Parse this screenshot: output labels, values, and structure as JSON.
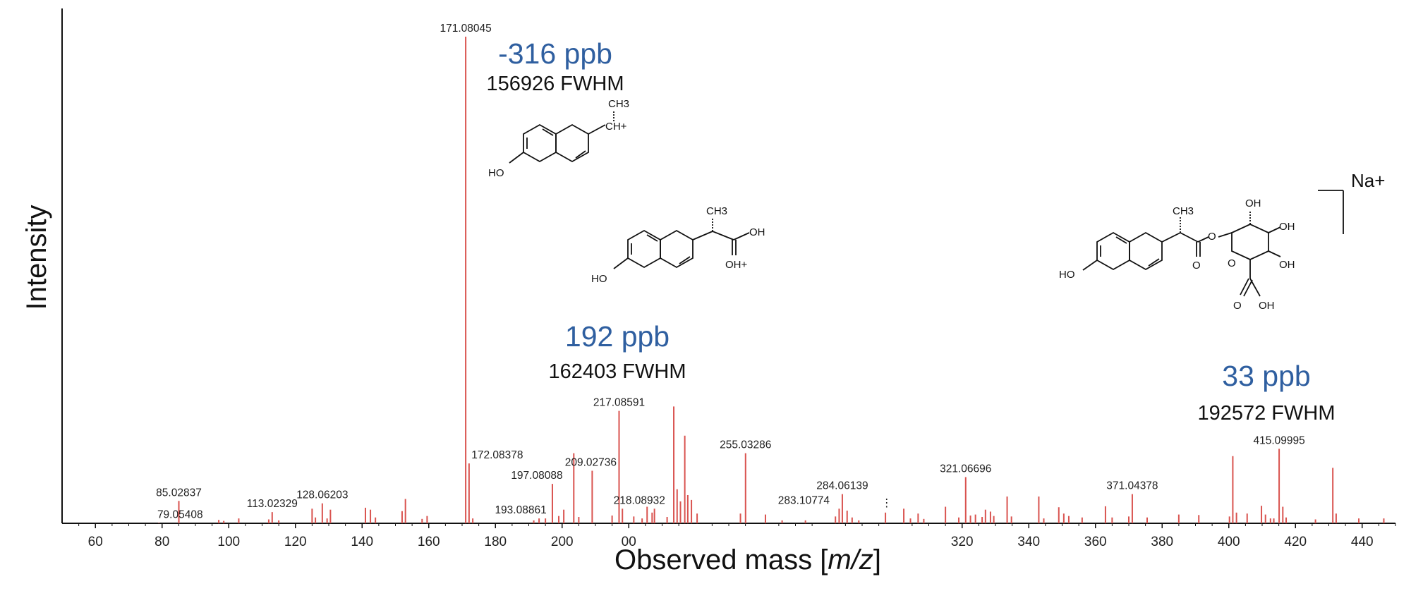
{
  "chart_data": {
    "type": "bar",
    "xlabel": "Observed mass [m/z]",
    "ylabel": "Intensity",
    "xlim": [
      50,
      450
    ],
    "x_ticks": [
      "60",
      "80",
      "100",
      "120",
      "140",
      "160",
      "180",
      "200",
      "00",
      "320",
      "340",
      "360",
      "380",
      "400",
      "420",
      "440"
    ],
    "labeled_peaks": [
      {
        "mz": 79.05408,
        "intensity": 0.1,
        "label": "79.05408"
      },
      {
        "mz": 85.02837,
        "intensity": 4.6,
        "label": "85.02837"
      },
      {
        "mz": 113.02329,
        "intensity": 2.3,
        "label": "113.02329"
      },
      {
        "mz": 128.06203,
        "intensity": 4.1,
        "label": "128.06203"
      },
      {
        "mz": 171.08045,
        "intensity": 100,
        "label": "171.08045"
      },
      {
        "mz": 172.08378,
        "intensity": 12.3,
        "label": "172.08378"
      },
      {
        "mz": 193.08861,
        "intensity": 1.0,
        "label": "193.08861"
      },
      {
        "mz": 197.08088,
        "intensity": 8.1,
        "label": "197.08088"
      },
      {
        "mz": 209.02736,
        "intensity": 10.8,
        "label": "209.02736"
      },
      {
        "mz": 217.08591,
        "intensity": 23.1,
        "label": "217.08591"
      },
      {
        "mz": 218.08932,
        "intensity": 3.0,
        "label": "218.08932"
      },
      {
        "mz": 255.03286,
        "intensity": 14.4,
        "label": "255.03286"
      },
      {
        "mz": 283.10774,
        "intensity": 3.0,
        "label": "283.10774"
      },
      {
        "mz": 284.06139,
        "intensity": 6.0,
        "label": "284.06139"
      },
      {
        "mz": 321.06696,
        "intensity": 9.5,
        "label": "321.06696"
      },
      {
        "mz": 371.04378,
        "intensity": 6.0,
        "label": "371.04378"
      },
      {
        "mz": 415.09995,
        "intensity": 15.3,
        "label": "415.09995"
      }
    ],
    "other_peaks": [
      {
        "mz": 97,
        "intensity": 0.7
      },
      {
        "mz": 98.5,
        "intensity": 0.5
      },
      {
        "mz": 103,
        "intensity": 1.0
      },
      {
        "mz": 112,
        "intensity": 0.8
      },
      {
        "mz": 115,
        "intensity": 0.6
      },
      {
        "mz": 125,
        "intensity": 3.0
      },
      {
        "mz": 126,
        "intensity": 1.2
      },
      {
        "mz": 129.5,
        "intensity": 1.0
      },
      {
        "mz": 130.5,
        "intensity": 2.8
      },
      {
        "mz": 141,
        "intensity": 3.2
      },
      {
        "mz": 142.5,
        "intensity": 2.8
      },
      {
        "mz": 144,
        "intensity": 1.2
      },
      {
        "mz": 152,
        "intensity": 2.5
      },
      {
        "mz": 153,
        "intensity": 5.0
      },
      {
        "mz": 158,
        "intensity": 0.9
      },
      {
        "mz": 159.5,
        "intensity": 1.5
      },
      {
        "mz": 173.2,
        "intensity": 1.0
      },
      {
        "mz": 191.5,
        "intensity": 0.6
      },
      {
        "mz": 195,
        "intensity": 1.0
      },
      {
        "mz": 199,
        "intensity": 1.5
      },
      {
        "mz": 200.5,
        "intensity": 2.8
      },
      {
        "mz": 203.5,
        "intensity": 14.4
      },
      {
        "mz": 205,
        "intensity": 1.3
      },
      {
        "mz": 215,
        "intensity": 1.6
      },
      {
        "mz": 221.5,
        "intensity": 1.4
      },
      {
        "mz": 224,
        "intensity": 1.0
      },
      {
        "mz": 225.5,
        "intensity": 3.4
      },
      {
        "mz": 227,
        "intensity": 2.2
      },
      {
        "mz": 227.7,
        "intensity": 3.0
      },
      {
        "mz": 231.5,
        "intensity": 1.3
      },
      {
        "mz": 233.5,
        "intensity": 24.0
      },
      {
        "mz": 234.5,
        "intensity": 7.0
      },
      {
        "mz": 235.5,
        "intensity": 4.5
      },
      {
        "mz": 236.8,
        "intensity": 18.0
      },
      {
        "mz": 237.7,
        "intensity": 5.8
      },
      {
        "mz": 238.8,
        "intensity": 4.8
      },
      {
        "mz": 240.5,
        "intensity": 2.0
      },
      {
        "mz": 253.5,
        "intensity": 2.0
      },
      {
        "mz": 261,
        "intensity": 1.8
      },
      {
        "mz": 266,
        "intensity": 0.6
      },
      {
        "mz": 273,
        "intensity": 0.6
      },
      {
        "mz": 282,
        "intensity": 1.4
      },
      {
        "mz": 285.5,
        "intensity": 2.6
      },
      {
        "mz": 287,
        "intensity": 1.2
      },
      {
        "mz": 289,
        "intensity": 0.6
      },
      {
        "mz": 297,
        "intensity": 2.2
      },
      {
        "mz": 302.5,
        "intensity": 3.0
      },
      {
        "mz": 304.5,
        "intensity": 1.0
      },
      {
        "mz": 306.8,
        "intensity": 2.0
      },
      {
        "mz": 308.5,
        "intensity": 0.9
      },
      {
        "mz": 315,
        "intensity": 3.4
      },
      {
        "mz": 319,
        "intensity": 1.2
      },
      {
        "mz": 322.5,
        "intensity": 1.6
      },
      {
        "mz": 324,
        "intensity": 1.8
      },
      {
        "mz": 326,
        "intensity": 1.3
      },
      {
        "mz": 327,
        "intensity": 2.8
      },
      {
        "mz": 328.5,
        "intensity": 2.4
      },
      {
        "mz": 329.5,
        "intensity": 1.5
      },
      {
        "mz": 333.5,
        "intensity": 5.5
      },
      {
        "mz": 334.8,
        "intensity": 1.4
      },
      {
        "mz": 343,
        "intensity": 5.5
      },
      {
        "mz": 344.5,
        "intensity": 1.0
      },
      {
        "mz": 349,
        "intensity": 3.3
      },
      {
        "mz": 350.5,
        "intensity": 2.0
      },
      {
        "mz": 352,
        "intensity": 1.5
      },
      {
        "mz": 356,
        "intensity": 1.2
      },
      {
        "mz": 363,
        "intensity": 3.5
      },
      {
        "mz": 365,
        "intensity": 1.2
      },
      {
        "mz": 370,
        "intensity": 1.4
      },
      {
        "mz": 375.5,
        "intensity": 1.2
      },
      {
        "mz": 385,
        "intensity": 1.8
      },
      {
        "mz": 391,
        "intensity": 1.7
      },
      {
        "mz": 400.2,
        "intensity": 1.4
      },
      {
        "mz": 401.2,
        "intensity": 13.8
      },
      {
        "mz": 402.3,
        "intensity": 2.2
      },
      {
        "mz": 405.5,
        "intensity": 2.0
      },
      {
        "mz": 409.8,
        "intensity": 3.6
      },
      {
        "mz": 411,
        "intensity": 1.8
      },
      {
        "mz": 412.5,
        "intensity": 1.0
      },
      {
        "mz": 413.5,
        "intensity": 1.0
      },
      {
        "mz": 416.2,
        "intensity": 3.4
      },
      {
        "mz": 417.2,
        "intensity": 1.2
      },
      {
        "mz": 426,
        "intensity": 0.8
      },
      {
        "mz": 431.2,
        "intensity": 11.4
      },
      {
        "mz": 432.2,
        "intensity": 2.0
      },
      {
        "mz": 439,
        "intensity": 1.0
      },
      {
        "mz": 446.5,
        "intensity": 1.0
      }
    ],
    "annotations": [
      {
        "ppb": "-316 ppb",
        "fwhm": "156926 FWHM"
      },
      {
        "ppb": "192 ppb",
        "fwhm": "162403 FWHM"
      },
      {
        "ppb": "33 ppb",
        "fwhm": "192572 FWHM"
      }
    ],
    "structure_labels": {
      "ch3": "CH3",
      "ch_plus": "CH+",
      "ho": "HO",
      "oh": "OH",
      "oh_plus": "OH+",
      "o": "O",
      "na_plus": "Na+"
    },
    "colors": {
      "peaks": "#d9534f",
      "ppb": "#2f5fa0",
      "axis": "#111111"
    }
  }
}
